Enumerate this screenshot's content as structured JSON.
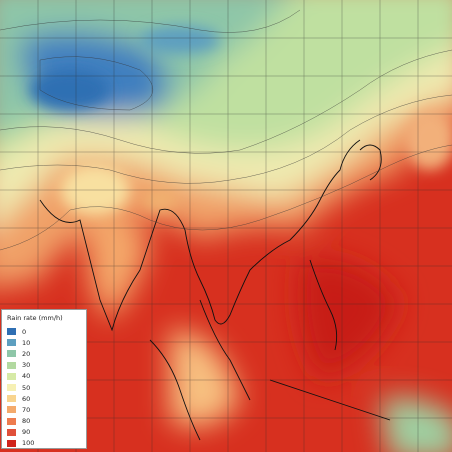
{
  "legend": {
    "title": "Rain rate (mm/h)",
    "items": [
      {
        "value": 0,
        "color": "#2f6fb3"
      },
      {
        "value": 10,
        "color": "#5d9fc0"
      },
      {
        "value": 20,
        "color": "#8ec6a8"
      },
      {
        "value": 30,
        "color": "#b2d9a0"
      },
      {
        "value": 40,
        "color": "#d6eaa6"
      },
      {
        "value": 50,
        "color": "#f6f0b4"
      },
      {
        "value": 60,
        "color": "#f8d48e"
      },
      {
        "value": 70,
        "color": "#f4aa6c"
      },
      {
        "value": 80,
        "color": "#ee7c4f"
      },
      {
        "value": 90,
        "color": "#e0503a"
      },
      {
        "value": 100,
        "color": "#d0241c"
      }
    ]
  }
}
